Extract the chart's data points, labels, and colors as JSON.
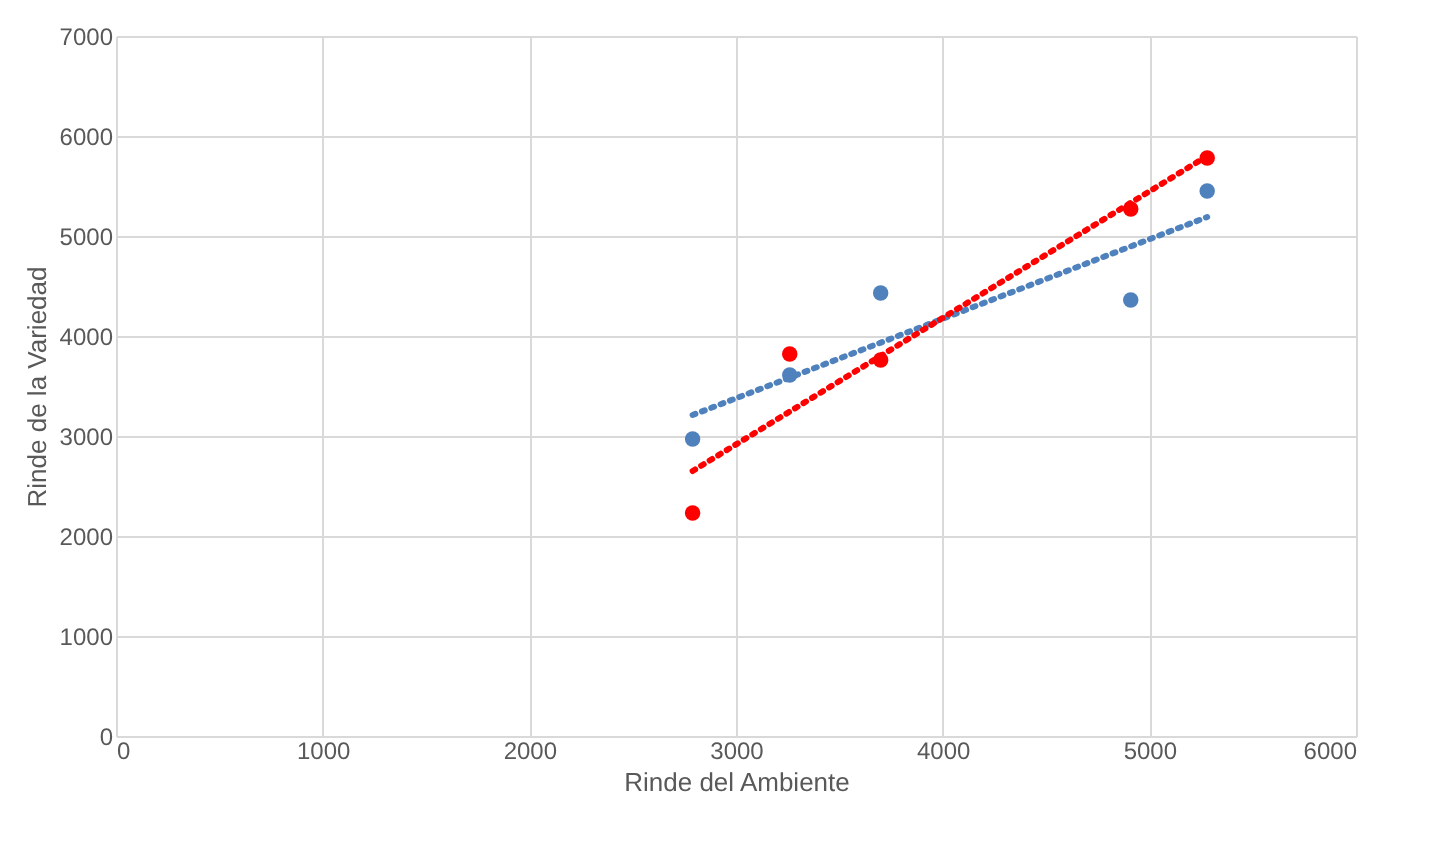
{
  "chart_data": {
    "type": "scatter",
    "xlabel": "Rinde del Ambiente",
    "ylabel": "Rinde de la Variedad",
    "xlim": [
      0,
      6000
    ],
    "xticks": [
      0,
      1000,
      2000,
      3000,
      4000,
      5000,
      6000
    ],
    "ylim": [
      0,
      7000
    ],
    "yticks": [
      0,
      1000,
      2000,
      3000,
      4000,
      5000,
      6000,
      7000
    ],
    "grid": true,
    "marker": "circle",
    "series": [
      {
        "color": "#4f81bd",
        "x": [
          2790,
          3260,
          3700,
          4910,
          5280
        ],
        "values": [
          2970,
          3610,
          4430,
          4360,
          5450
        ]
      },
      {
        "color": "#ff0000",
        "x": [
          2790,
          3260,
          3700,
          4910,
          5280
        ],
        "values": [
          2230,
          3820,
          3760,
          5270,
          5780
        ]
      },
      {
        "type": "line",
        "marker": "none",
        "line_style": "dotted",
        "color": "#4f81bd",
        "x": [
          2790,
          5280
        ],
        "values": [
          3210,
          5190
        ]
      },
      {
        "type": "line",
        "marker": "none",
        "line_style": "dotted",
        "color": "#ff0000",
        "x": [
          2790,
          5280
        ],
        "values": [
          2650,
          5800
        ]
      }
    ]
  }
}
